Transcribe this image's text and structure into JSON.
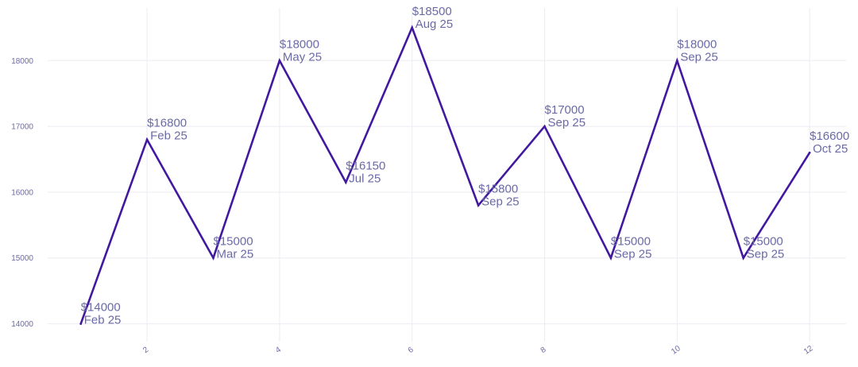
{
  "chart_data": {
    "type": "line",
    "title": "",
    "xlabel": "",
    "ylabel": "",
    "xlim": [
      0.5,
      12.55
    ],
    "ylim": [
      13850,
      18800
    ],
    "grid": true,
    "x_ticks": [
      2,
      4,
      6,
      8,
      10,
      12
    ],
    "y_ticks": [
      14000,
      15000,
      16000,
      17000,
      18000
    ],
    "series": [
      {
        "color": "#4318a0",
        "points": [
          {
            "x": 1,
            "y": 14000,
            "value_label": "$14000",
            "date_label": "Feb 25"
          },
          {
            "x": 2,
            "y": 16800,
            "value_label": "$16800",
            "date_label": "Feb 25"
          },
          {
            "x": 3,
            "y": 15000,
            "value_label": "$15000",
            "date_label": "Mar 25"
          },
          {
            "x": 4,
            "y": 18000,
            "value_label": "$18000",
            "date_label": "May 25"
          },
          {
            "x": 5,
            "y": 16150,
            "value_label": "$16150",
            "date_label": "Jul 25"
          },
          {
            "x": 6,
            "y": 18500,
            "value_label": "$18500",
            "date_label": "Aug 25"
          },
          {
            "x": 7,
            "y": 15800,
            "value_label": "$15800",
            "date_label": "Sep 25"
          },
          {
            "x": 8,
            "y": 17000,
            "value_label": "$17000",
            "date_label": "Sep 25"
          },
          {
            "x": 9,
            "y": 15000,
            "value_label": "$15000",
            "date_label": "Sep 25"
          },
          {
            "x": 10,
            "y": 18000,
            "value_label": "$18000",
            "date_label": "Sep 25"
          },
          {
            "x": 11,
            "y": 15000,
            "value_label": "$15000",
            "date_label": "Sep 25"
          },
          {
            "x": 12,
            "y": 16600,
            "value_label": "$16600",
            "date_label": "Oct 25"
          }
        ]
      }
    ]
  }
}
